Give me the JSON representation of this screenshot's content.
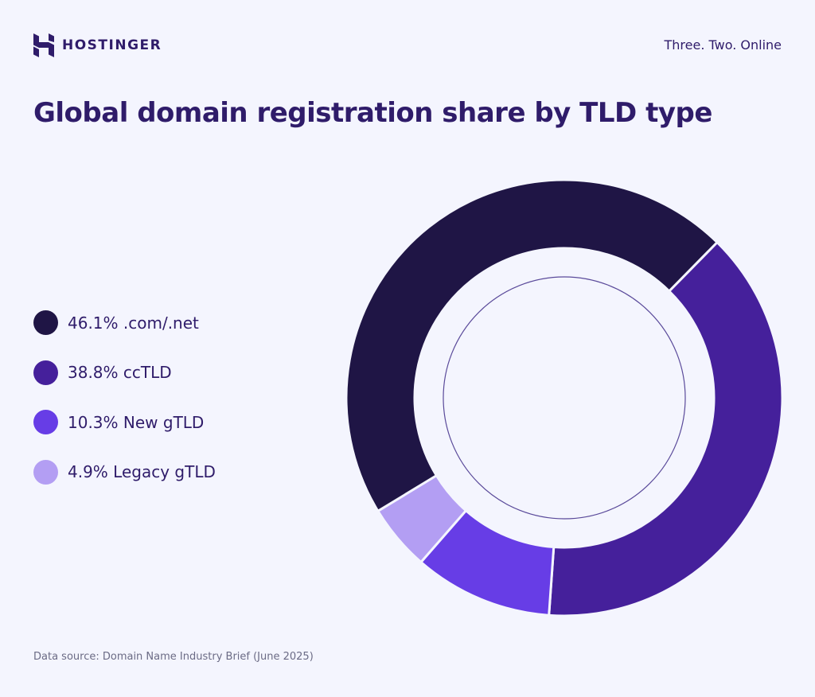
{
  "brand": {
    "name": "HOSTINGER",
    "tagline": "Three. Two. Online"
  },
  "chart_data": {
    "type": "pie",
    "variant": "donut",
    "title": "Global domain registration share by TLD type",
    "categories": [
      ".com/.net",
      "ccTLD",
      "New gTLD",
      "Legacy gTLD"
    ],
    "values": [
      46.1,
      38.8,
      10.3,
      4.9
    ],
    "unit": "%",
    "labels": [
      "46.1% .com/.net",
      "38.8% ccTLD",
      "10.3% New gTLD",
      "4.9% Legacy gTLD"
    ],
    "colors": [
      "#1f1545",
      "#45209b",
      "#673de6",
      "#b39ef3"
    ],
    "legend_position": "left",
    "source": "Data source: Domain Name Industry Brief (June 2025)"
  }
}
